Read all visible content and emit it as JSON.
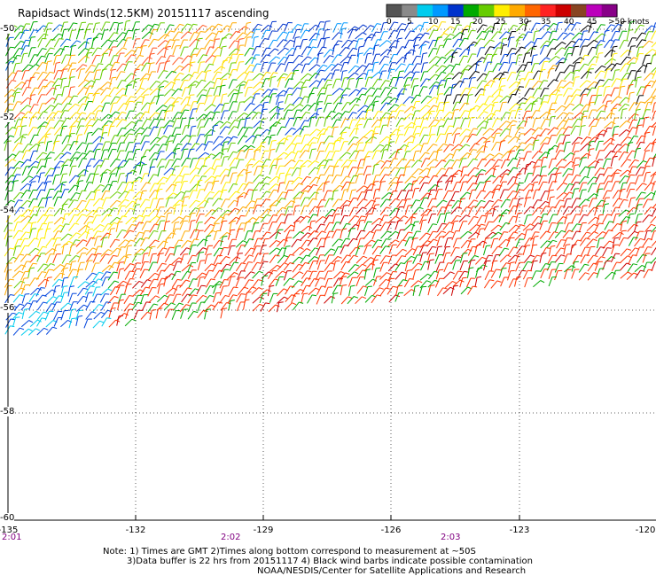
{
  "title": "Rapidsact Winds(12.5KM) 20151117 ascending",
  "colorbar": {
    "colors": [
      "#555555",
      "#8a8a8a",
      "#00ccee",
      "#0099ff",
      "#0033cc",
      "#00aa00",
      "#66cc00",
      "#ffee00",
      "#ffaa00",
      "#ff6600",
      "#ff2222",
      "#cc0000",
      "#884422",
      "#bb00bb",
      "#880088"
    ],
    "labels": [
      "0",
      "5",
      "10",
      "15",
      "20",
      "25",
      "30",
      "35",
      "40",
      "45",
      ">50 knots"
    ]
  },
  "lat_labels": [
    "-50",
    "-52",
    "-54",
    "-56",
    "-58",
    "-60"
  ],
  "lon_labels": [
    "-135",
    "-132",
    "-129",
    "-126",
    "-123",
    "-120"
  ],
  "time_labels": [
    "2:01",
    "2:02",
    "2:03"
  ],
  "notes": [
    "Note: 1) Times are GMT 2)Times along bottom correspond to measurement at ~50S",
    "3)Data buffer is 22 hrs from 20151117 4) Black wind barbs indicate possible contamination",
    "NOAA/NESDIS/Center for Satellite Applications and Research"
  ]
}
